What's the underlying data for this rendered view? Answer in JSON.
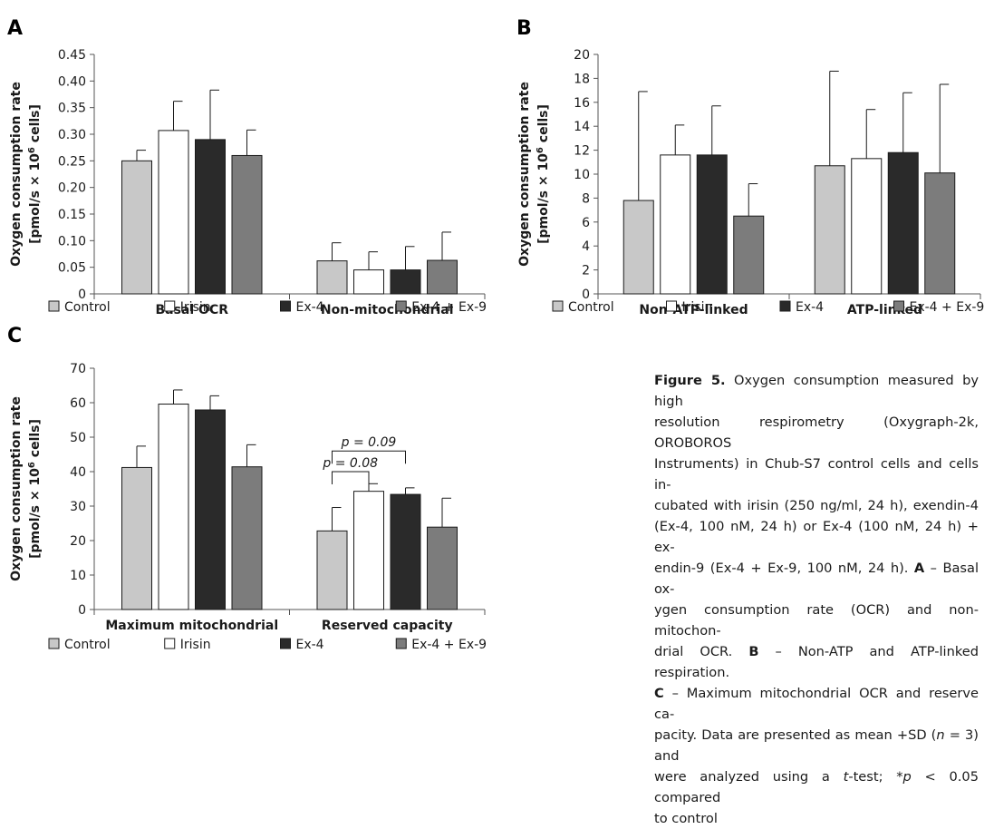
{
  "legend": [
    "Control",
    "Irisin",
    "Ex-4",
    "Ex-4 + Ex-9"
  ],
  "colors": {
    "Control": "#c8c8c8",
    "Irisin": "#ffffff",
    "Ex-4": "#2a2a2a",
    "Ex-4 + Ex-9": "#7c7c7c"
  },
  "ylabel_line1": "Oxygen consumption rate",
  "ylabel_line2": "[pmol/s × 10",
  "ylabel_sup": "6",
  "ylabel_line2_end": " cells]",
  "chart_data": [
    {
      "type": "bar",
      "panel": "A",
      "categories": [
        "Basal OCR",
        "Non-mitochondrial"
      ],
      "ylabel": "Oxygen consumption rate [pmol/s × 10⁶ cells]",
      "ylim": [
        0,
        0.45
      ],
      "yticks": [
        0,
        0.05,
        0.1,
        0.15,
        0.2,
        0.25,
        0.3,
        0.35,
        0.4,
        0.45
      ],
      "ytick_labels": [
        "0",
        "0.05",
        "0.10",
        "0.15",
        "0.20",
        "0.25",
        "0.30",
        "0.35",
        "0.40",
        "0.45"
      ],
      "series": [
        {
          "name": "Control",
          "values": [
            0.25,
            0.062
          ],
          "sd": [
            0.02,
            0.034
          ]
        },
        {
          "name": "Irisin",
          "values": [
            0.307,
            0.045
          ],
          "sd": [
            0.055,
            0.034
          ]
        },
        {
          "name": "Ex-4",
          "values": [
            0.29,
            0.045
          ],
          "sd": [
            0.093,
            0.044
          ]
        },
        {
          "name": "Ex-4 + Ex-9",
          "values": [
            0.26,
            0.063
          ],
          "sd": [
            0.048,
            0.053
          ]
        }
      ],
      "annotations": []
    },
    {
      "type": "bar",
      "panel": "B",
      "categories": [
        "Non-ATP-linked",
        "ATP-linked"
      ],
      "ylabel": "Oxygen consumption rate [pmol/s × 10⁶ cells]",
      "ylim": [
        0,
        20
      ],
      "yticks": [
        0,
        2,
        4,
        6,
        8,
        10,
        12,
        14,
        16,
        18,
        20
      ],
      "ytick_labels": [
        "0",
        "2",
        "4",
        "6",
        "8",
        "10",
        "12",
        "14",
        "16",
        "18",
        "20"
      ],
      "series": [
        {
          "name": "Control",
          "values": [
            7.8,
            10.7
          ],
          "sd": [
            9.1,
            7.9
          ]
        },
        {
          "name": "Irisin",
          "values": [
            11.6,
            11.3
          ],
          "sd": [
            2.5,
            4.1
          ]
        },
        {
          "name": "Ex-4",
          "values": [
            11.6,
            11.8
          ],
          "sd": [
            4.1,
            5.0
          ]
        },
        {
          "name": "Ex-4 + Ex-9",
          "values": [
            6.5,
            10.1
          ],
          "sd": [
            2.7,
            7.4
          ]
        }
      ],
      "annotations": []
    },
    {
      "type": "bar",
      "panel": "C",
      "categories": [
        "Maximum mitochondrial",
        "Reserved capacity"
      ],
      "ylabel": "Oxygen consumption rate [pmol/s × 10⁶ cells]",
      "ylim": [
        0,
        70
      ],
      "yticks": [
        0,
        10,
        20,
        30,
        40,
        50,
        60,
        70
      ],
      "ytick_labels": [
        "0",
        "10",
        "20",
        "30",
        "40",
        "50",
        "60",
        "70"
      ],
      "series": [
        {
          "name": "Control",
          "values": [
            41.2,
            22.8
          ],
          "sd": [
            6.2,
            6.8
          ]
        },
        {
          "name": "Irisin",
          "values": [
            59.6,
            34.3
          ],
          "sd": [
            4.1,
            2.2
          ]
        },
        {
          "name": "Ex-4",
          "values": [
            57.9,
            33.4
          ],
          "sd": [
            4.1,
            1.9
          ]
        },
        {
          "name": "Ex-4 + Ex-9",
          "values": [
            41.4,
            23.9
          ],
          "sd": [
            6.4,
            8.4
          ]
        }
      ],
      "annotations": [
        {
          "text": "p = 0.09",
          "from_series": 0,
          "to_series": 2,
          "category": 1,
          "y": 46
        },
        {
          "text": "p = 0.08",
          "from_series": 0,
          "to_series": 1,
          "category": 1,
          "y": 40
        }
      ]
    }
  ],
  "caption": {
    "label": "Figure 5.",
    "lines": [
      {
        "parts": [
          {
            "b": "Figure 5."
          },
          {
            "t": " Oxygen consumption measured by high"
          }
        ]
      },
      {
        "parts": [
          {
            "t": "resolution respirometry (Oxygraph-2k, OROBOROS"
          }
        ]
      },
      {
        "parts": [
          {
            "t": "Instruments) in Chub-S7 control cells and cells in-"
          }
        ]
      },
      {
        "parts": [
          {
            "t": "cubated with irisin (250 ng/ml, 24 h), exendin-4"
          }
        ]
      },
      {
        "parts": [
          {
            "t": "(Ex-4, 100 nM, 24 h) or Ex-4 (100 nM, 24 h) + ex-"
          }
        ]
      },
      {
        "parts": [
          {
            "t": "endin-9 (Ex-4 + Ex-9, 100 nM, 24 h). "
          },
          {
            "b": "A"
          },
          {
            "t": " – Basal ox-"
          }
        ]
      },
      {
        "parts": [
          {
            "t": "ygen consumption rate (OCR) and non-mitochon-"
          }
        ]
      },
      {
        "parts": [
          {
            "t": "drial OCR. "
          },
          {
            "b": "B"
          },
          {
            "t": " – Non-ATP and ATP-linked respiration."
          }
        ]
      },
      {
        "parts": [
          {
            "b": "C"
          },
          {
            "t": " – Maximum mitochondrial OCR and reserve ca-"
          }
        ]
      },
      {
        "parts": [
          {
            "t": "pacity. Data are presented as mean +SD ("
          },
          {
            "i": "n"
          },
          {
            "t": " = 3) and"
          }
        ]
      },
      {
        "parts": [
          {
            "t": "were analyzed using a "
          },
          {
            "i": "t"
          },
          {
            "t": "-test; *"
          },
          {
            "i": "p"
          },
          {
            "t": " < 0.05 compared"
          }
        ]
      },
      {
        "parts": [
          {
            "t": "to control"
          }
        ]
      }
    ]
  }
}
